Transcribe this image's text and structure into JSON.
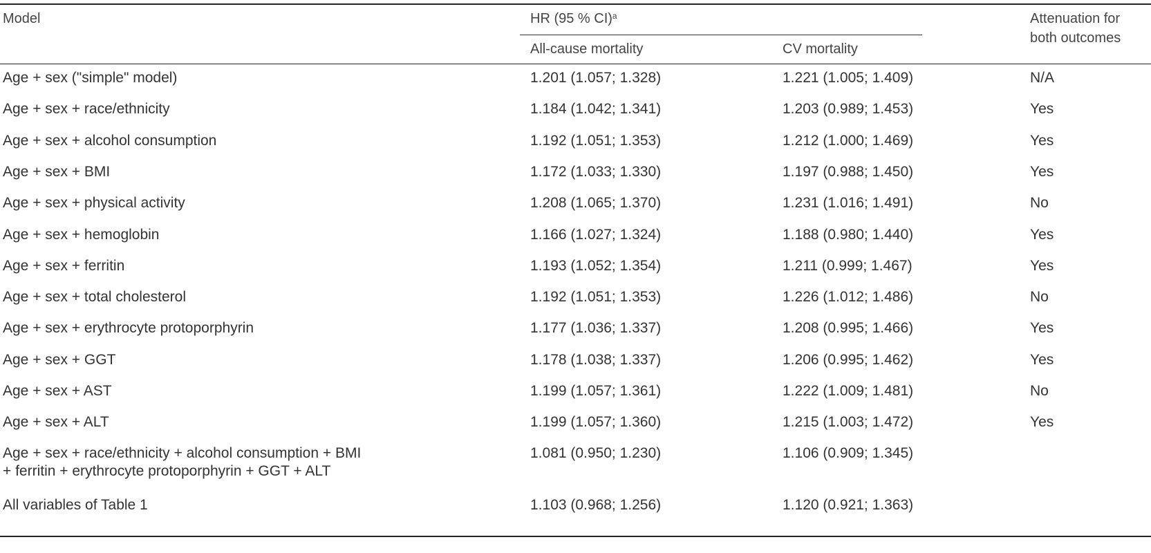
{
  "header": {
    "model": "Model",
    "hr": "HR (95 % CI)",
    "hr_sup": "a",
    "all_cause": "All-cause mortality",
    "cv": "CV mortality",
    "attenuation_line1": "Attenuation for",
    "attenuation_line2": "both outcomes"
  },
  "rows": [
    {
      "model": "Age + sex (\"simple\" model)",
      "all": "1.201 (1.057; 1.328)",
      "cv": "1.221 (1.005; 1.409)",
      "att": "N/A"
    },
    {
      "model": "Age + sex + race/ethnicity",
      "all": "1.184 (1.042; 1.341)",
      "cv": "1.203 (0.989; 1.453)",
      "att": "Yes"
    },
    {
      "model": "Age + sex + alcohol consumption",
      "all": "1.192 (1.051; 1.353)",
      "cv": "1.212 (1.000; 1.469)",
      "att": "Yes"
    },
    {
      "model": "Age + sex + BMI",
      "all": "1.172 (1.033; 1.330)",
      "cv": "1.197 (0.988; 1.450)",
      "att": "Yes"
    },
    {
      "model": "Age + sex + physical activity",
      "all": "1.208 (1.065; 1.370)",
      "cv": "1.231 (1.016; 1.491)",
      "att": "No"
    },
    {
      "model": "Age + sex + hemoglobin",
      "all": "1.166 (1.027; 1.324)",
      "cv": "1.188 (0.980; 1.440)",
      "att": "Yes"
    },
    {
      "model": "Age + sex + ferritin",
      "all": "1.193 (1.052; 1.354)",
      "cv": "1.211 (0.999; 1.467)",
      "att": "Yes"
    },
    {
      "model": "Age + sex + total cholesterol",
      "all": "1.192 (1.051; 1.353)",
      "cv": "1.226 (1.012; 1.486)",
      "att": "No"
    },
    {
      "model": "Age + sex + erythrocyte protoporphyrin",
      "all": "1.177 (1.036; 1.337)",
      "cv": "1.208 (0.995; 1.466)",
      "att": "Yes"
    },
    {
      "model": "Age + sex + GGT",
      "all": "1.178 (1.038; 1.337)",
      "cv": "1.206 (0.995; 1.462)",
      "att": "Yes"
    },
    {
      "model": "Age + sex + AST",
      "all": "1.199 (1.057; 1.361)",
      "cv": "1.222 (1.009; 1.481)",
      "att": "No"
    },
    {
      "model": "Age + sex + ALT",
      "all": "1.199 (1.057; 1.360)",
      "cv": "1.215 (1.003; 1.472)",
      "att": "Yes"
    }
  ],
  "combined_row": {
    "model_line1": "Age + sex + race/ethnicity + alcohol consumption + BMI",
    "model_line2": "+ ferritin + erythrocyte protoporphyrin + GGT + ALT",
    "all": "1.081 (0.950; 1.230)",
    "cv": "1.106 (0.909; 1.345)"
  },
  "last_row": {
    "model": "All variables of Table 1",
    "all": "1.103 (0.968; 1.256)",
    "cv": "1.120 (0.921; 1.363)"
  }
}
